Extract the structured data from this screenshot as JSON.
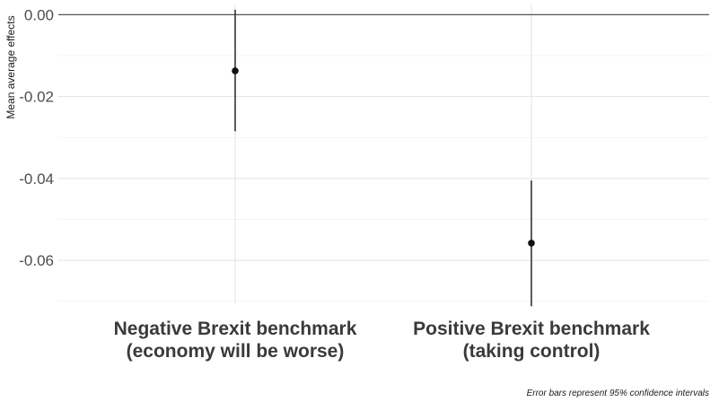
{
  "chart_data": {
    "type": "scatter",
    "subtype": "point-with-error-bars",
    "ylabel": "Mean average effects",
    "xlabel": "",
    "caption": "Error bars represent 95% confidence intervals",
    "categories": [
      [
        "Negative Brexit benchmark",
        "(economy will be worse)"
      ],
      [
        "Positive Brexit benchmark",
        "(taking control)"
      ]
    ],
    "points": [
      {
        "estimate": -0.0137,
        "ci_low": -0.0285,
        "ci_high": 0.0012
      },
      {
        "estimate": -0.0558,
        "ci_low": -0.0712,
        "ci_high": -0.0405
      }
    ],
    "y_ticks": [
      "0.00",
      "-0.02",
      "-0.04",
      "-0.06"
    ],
    "y_tick_values": [
      0.0,
      -0.02,
      -0.04,
      -0.06
    ],
    "ylim": [
      -0.0705,
      0.0025
    ],
    "reference_line": 0.0,
    "grid": true,
    "legend": "none",
    "colors": {
      "point": "#111111",
      "errorbar": "#333333",
      "grid_major": "#e3e3e3",
      "grid_minor": "#f0f0f0",
      "reference": "#555555"
    }
  }
}
